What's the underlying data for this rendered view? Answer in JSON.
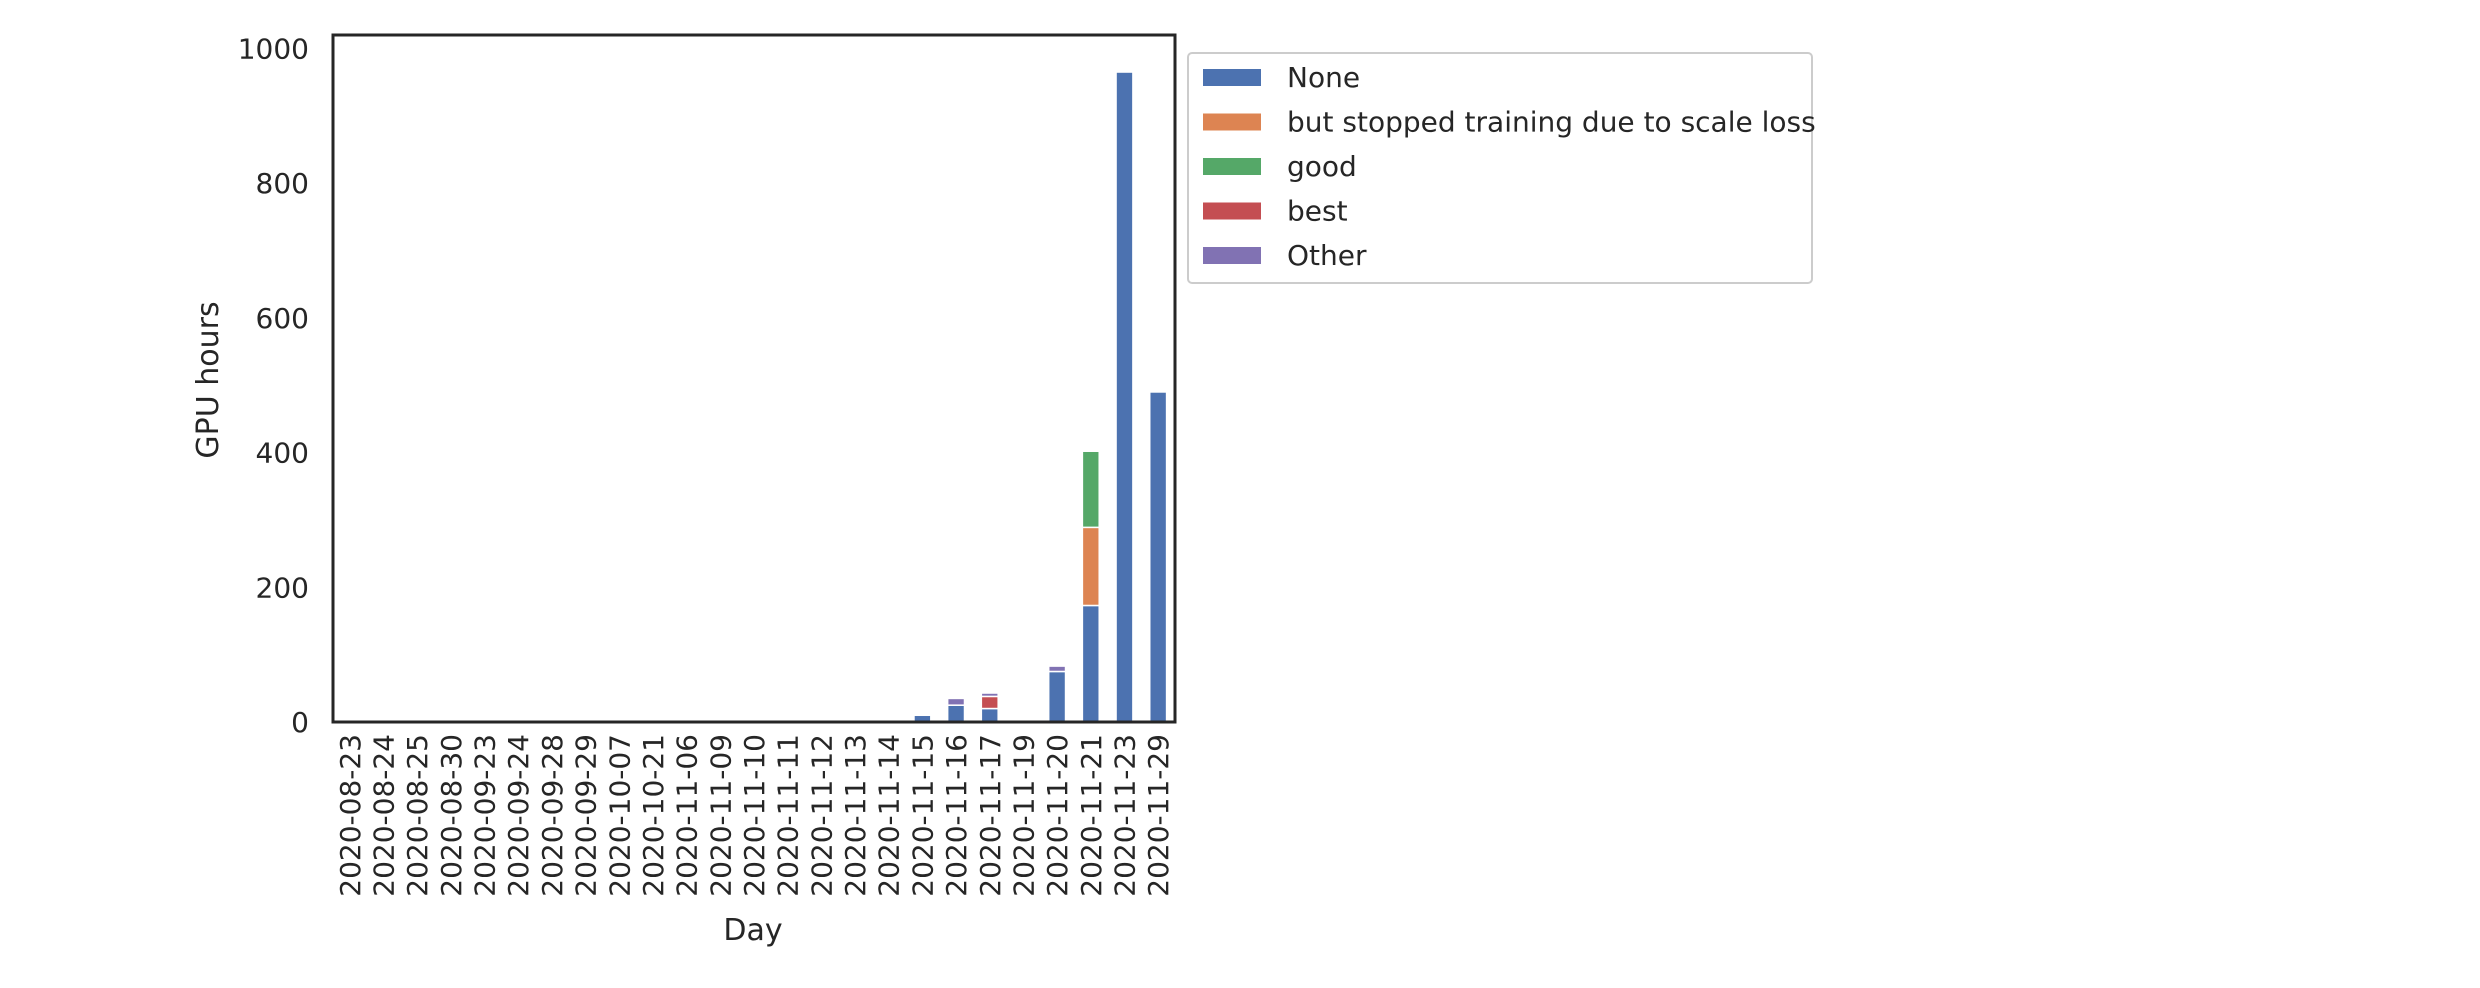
{
  "chart_data": {
    "type": "bar",
    "stacked": true,
    "title": "",
    "xlabel": "Day",
    "ylabel": "GPU hours",
    "ylim": [
      0,
      1020
    ],
    "yticks": [
      0,
      200,
      400,
      600,
      800,
      1000
    ],
    "grid": false,
    "legend_position": "outside-top-right",
    "categories": [
      "2020-08-23",
      "2020-08-24",
      "2020-08-25",
      "2020-08-30",
      "2020-09-23",
      "2020-09-24",
      "2020-09-28",
      "2020-09-29",
      "2020-10-07",
      "2020-10-21",
      "2020-11-06",
      "2020-11-09",
      "2020-11-10",
      "2020-11-11",
      "2020-11-12",
      "2020-11-13",
      "2020-11-14",
      "2020-11-15",
      "2020-11-16",
      "2020-11-17",
      "2020-11-19",
      "2020-11-20",
      "2020-11-21",
      "2020-11-23",
      "2020-11-29"
    ],
    "series": [
      {
        "name": "None",
        "color": "#4c72b0",
        "values": [
          0.5,
          0.5,
          0.5,
          0.5,
          0.5,
          0.5,
          0.5,
          0.5,
          0.5,
          0.5,
          0.5,
          0.5,
          0.5,
          0.5,
          0.5,
          0.5,
          1,
          10,
          25,
          20,
          2,
          75,
          173,
          965,
          490
        ]
      },
      {
        "name": " but stopped training due to scale loss",
        "color": "#dd8452",
        "values": [
          0,
          0,
          0,
          0,
          0,
          0,
          0,
          0,
          0,
          0,
          0,
          0,
          0,
          0,
          0,
          0,
          0,
          0,
          0,
          0,
          0,
          0,
          116,
          0,
          0
        ]
      },
      {
        "name": "good",
        "color": "#55a868",
        "values": [
          0,
          0,
          0,
          0,
          0,
          0,
          0,
          0,
          0,
          0,
          0,
          0,
          0,
          0,
          0,
          0,
          0,
          0,
          0,
          0,
          0,
          0,
          113,
          0,
          0
        ]
      },
      {
        "name": "best",
        "color": "#c44e52",
        "values": [
          0,
          0,
          0,
          0,
          0,
          0,
          0,
          0,
          0,
          0,
          0,
          0,
          0,
          0,
          0,
          0,
          0,
          0,
          0,
          18,
          0,
          0,
          0,
          0,
          0
        ]
      },
      {
        "name": "Other",
        "color": "#8172b3",
        "values": [
          0,
          0,
          0,
          0,
          0,
          0,
          0,
          0,
          0,
          0,
          0,
          0,
          0,
          0,
          0,
          0,
          0,
          0,
          10,
          5,
          0,
          8,
          0,
          0,
          0
        ]
      }
    ]
  }
}
